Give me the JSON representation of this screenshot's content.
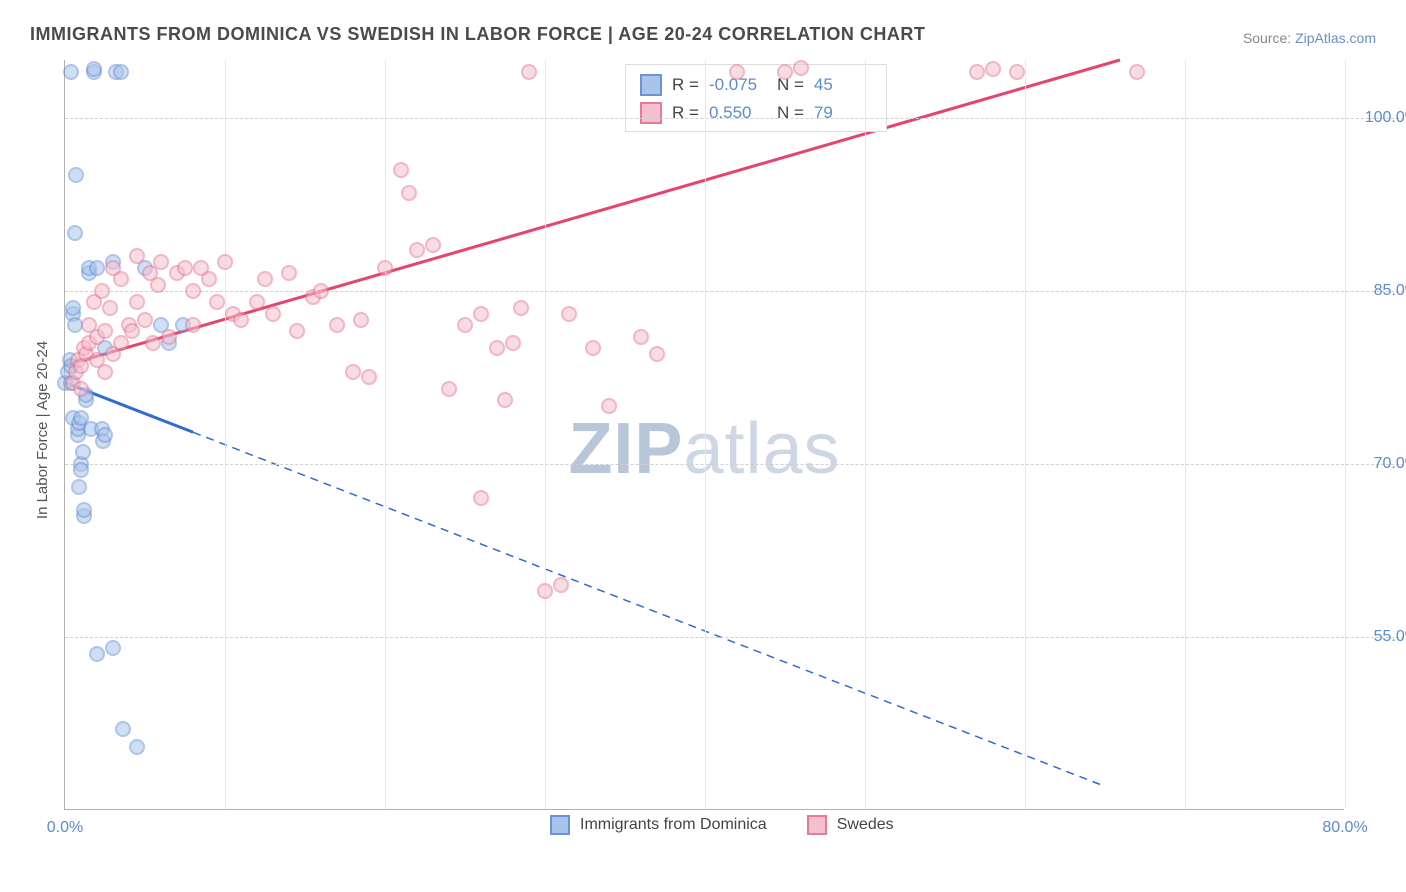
{
  "title": "IMMIGRANTS FROM DOMINICA VS SWEDISH IN LABOR FORCE | AGE 20-24 CORRELATION CHART",
  "source_label": "Source:",
  "source_value": "ZipAtlas.com",
  "watermark_a": "ZIP",
  "watermark_b": "atlas",
  "ylabel": "In Labor Force | Age 20-24",
  "chart": {
    "type": "scatter",
    "xlim": [
      0,
      80
    ],
    "ylim": [
      40,
      105
    ],
    "background_color": "#ffffff",
    "grid_color": "#d0d0d0",
    "axis_color": "#b0b0b0",
    "tick_color": "#5b8bd4",
    "tick_fontsize": 16,
    "yticks": [
      55.0,
      70.0,
      85.0,
      100.0
    ],
    "ytick_labels": [
      "55.0%",
      "70.0%",
      "85.0%",
      "100.0%"
    ],
    "xticks": [
      0.0,
      80.0
    ],
    "xtick_labels": [
      "0.0%",
      "80.0%"
    ],
    "xgrid": [
      10,
      20,
      30,
      40,
      50,
      60,
      70,
      80
    ],
    "marker_radius": 8,
    "marker_opacity": 0.55,
    "series": [
      {
        "id": "dominica",
        "label": "Immigrants from Dominica",
        "fill_color": "#a9c4ea",
        "stroke_color": "#6b93d6",
        "line_color": "#2f6bd0",
        "points": [
          [
            0.0,
            77.0
          ],
          [
            0.2,
            78.0
          ],
          [
            0.3,
            79.0
          ],
          [
            0.4,
            78.5
          ],
          [
            0.4,
            77.0
          ],
          [
            0.4,
            104.0
          ],
          [
            0.5,
            83.0
          ],
          [
            0.5,
            83.5
          ],
          [
            0.5,
            74.0
          ],
          [
            0.6,
            82.0
          ],
          [
            0.6,
            90.0
          ],
          [
            0.7,
            95.0
          ],
          [
            0.8,
            72.5
          ],
          [
            0.8,
            73.0
          ],
          [
            0.9,
            68.0
          ],
          [
            0.9,
            73.5
          ],
          [
            1.0,
            70.0
          ],
          [
            1.0,
            69.5
          ],
          [
            1.0,
            74.0
          ],
          [
            1.1,
            71.0
          ],
          [
            1.2,
            65.5
          ],
          [
            1.2,
            66.0
          ],
          [
            1.3,
            75.5
          ],
          [
            1.3,
            76.0
          ],
          [
            1.5,
            86.5
          ],
          [
            1.5,
            87.0
          ],
          [
            1.6,
            73.0
          ],
          [
            1.8,
            104.0
          ],
          [
            1.8,
            104.2
          ],
          [
            2.0,
            53.5
          ],
          [
            2.0,
            87.0
          ],
          [
            2.3,
            73.0
          ],
          [
            2.4,
            72.0
          ],
          [
            2.5,
            72.5
          ],
          [
            2.5,
            80.0
          ],
          [
            3.0,
            54.0
          ],
          [
            3.0,
            87.5
          ],
          [
            3.2,
            104.0
          ],
          [
            3.5,
            104.0
          ],
          [
            3.6,
            47.0
          ],
          [
            4.5,
            45.5
          ],
          [
            5.0,
            87.0
          ],
          [
            6.0,
            82.0
          ],
          [
            6.5,
            80.5
          ],
          [
            7.4,
            82.0
          ]
        ],
        "trend": {
          "x1": 0.0,
          "y1": 77.0,
          "x2": 65.0,
          "y2": 42.0,
          "solid_until_x": 8.0,
          "width": 3
        },
        "R": "-0.075",
        "N": "45"
      },
      {
        "id": "swedes",
        "label": "Swedes",
        "fill_color": "#f4c0cd",
        "stroke_color": "#e67a97",
        "line_color": "#e6436e",
        "points": [
          [
            0.5,
            77.0
          ],
          [
            0.7,
            78.0
          ],
          [
            0.8,
            79.0
          ],
          [
            1.0,
            76.5
          ],
          [
            1.0,
            78.5
          ],
          [
            1.2,
            80.0
          ],
          [
            1.3,
            79.5
          ],
          [
            1.5,
            80.5
          ],
          [
            1.5,
            82.0
          ],
          [
            1.8,
            84.0
          ],
          [
            2.0,
            79.0
          ],
          [
            2.0,
            81.0
          ],
          [
            2.3,
            85.0
          ],
          [
            2.5,
            78.0
          ],
          [
            2.5,
            81.5
          ],
          [
            2.8,
            83.5
          ],
          [
            3.0,
            87.0
          ],
          [
            3.0,
            79.5
          ],
          [
            3.5,
            80.5
          ],
          [
            3.5,
            86.0
          ],
          [
            4.0,
            82.0
          ],
          [
            4.2,
            81.5
          ],
          [
            4.5,
            84.0
          ],
          [
            4.5,
            88.0
          ],
          [
            5.0,
            82.5
          ],
          [
            5.3,
            86.5
          ],
          [
            5.5,
            80.5
          ],
          [
            5.8,
            85.5
          ],
          [
            6.0,
            87.5
          ],
          [
            6.5,
            81.0
          ],
          [
            7.0,
            86.5
          ],
          [
            7.5,
            87.0
          ],
          [
            8.0,
            82.0
          ],
          [
            8.0,
            85.0
          ],
          [
            8.5,
            87.0
          ],
          [
            9.0,
            86.0
          ],
          [
            9.5,
            84.0
          ],
          [
            10.0,
            87.5
          ],
          [
            10.5,
            83.0
          ],
          [
            11.0,
            82.5
          ],
          [
            12.0,
            84.0
          ],
          [
            12.5,
            86.0
          ],
          [
            13.0,
            83.0
          ],
          [
            14.0,
            86.5
          ],
          [
            14.5,
            81.5
          ],
          [
            15.5,
            84.5
          ],
          [
            16.0,
            85.0
          ],
          [
            17.0,
            82.0
          ],
          [
            18.0,
            78.0
          ],
          [
            18.5,
            82.5
          ],
          [
            19.0,
            77.5
          ],
          [
            20.0,
            87.0
          ],
          [
            21.0,
            95.5
          ],
          [
            21.5,
            93.5
          ],
          [
            22.0,
            88.5
          ],
          [
            23.0,
            89.0
          ],
          [
            24.0,
            76.5
          ],
          [
            25.0,
            82.0
          ],
          [
            26.0,
            83.0
          ],
          [
            26.0,
            67.0
          ],
          [
            27.0,
            80.0
          ],
          [
            27.5,
            75.5
          ],
          [
            28.0,
            80.5
          ],
          [
            28.5,
            83.5
          ],
          [
            29.0,
            104.0
          ],
          [
            30.0,
            59.0
          ],
          [
            31.0,
            59.5
          ],
          [
            31.5,
            83.0
          ],
          [
            33.0,
            80.0
          ],
          [
            34.0,
            75.0
          ],
          [
            36.0,
            81.0
          ],
          [
            37.0,
            79.5
          ],
          [
            42.0,
            104.0
          ],
          [
            45.0,
            104.0
          ],
          [
            46.0,
            104.3
          ],
          [
            57.0,
            104.0
          ],
          [
            58.0,
            104.2
          ],
          [
            59.5,
            104.0
          ],
          [
            67.0,
            104.0
          ]
        ],
        "trend": {
          "x1": 0.0,
          "y1": 78.5,
          "x2": 66.0,
          "y2": 105.0,
          "solid_until_x": 66.0,
          "width": 3
        },
        "R": "0.550",
        "N": "79"
      }
    ]
  },
  "legend_top_eq_R": "R =",
  "legend_top_eq_N": "N ="
}
